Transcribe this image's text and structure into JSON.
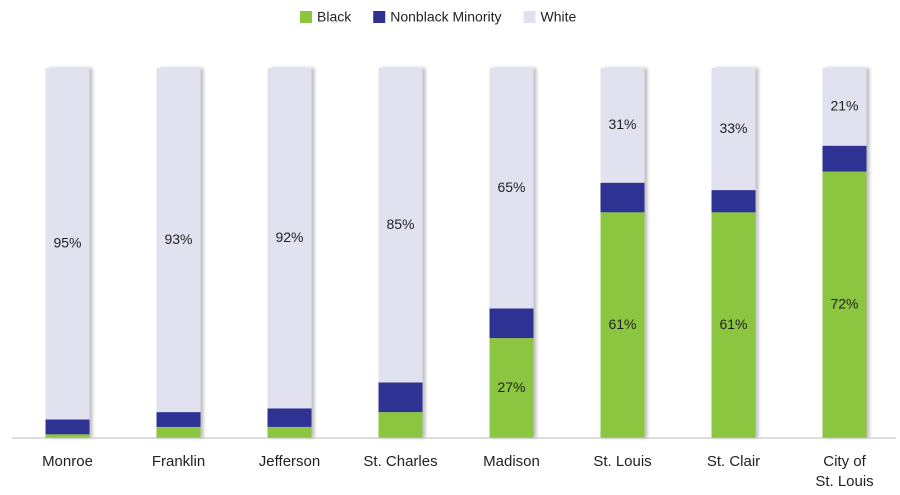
{
  "chart_data": {
    "type": "stacked_bar",
    "categories": [
      "Monroe",
      "Franklin",
      "Jefferson",
      "St. Charles",
      "Madison",
      "St. Louis",
      "St. Clair",
      "City of\nSt. Louis"
    ],
    "series": [
      {
        "name": "Black",
        "color": "#8cc63f",
        "values": [
          1,
          3,
          3,
          7,
          27,
          61,
          61,
          72
        ],
        "value_labels": [
          null,
          null,
          null,
          null,
          "27%",
          "61%",
          "61%",
          "72%"
        ]
      },
      {
        "name": "Nonblack Minority",
        "color": "#2e3192",
        "values": [
          4,
          4,
          5,
          8,
          8,
          8,
          6,
          7
        ]
      },
      {
        "name": "White",
        "color": "#e1e1ef",
        "values": [
          95,
          93,
          92,
          85,
          65,
          31,
          33,
          21
        ],
        "value_labels": [
          "95%",
          "93%",
          "92%",
          "85%",
          "65%",
          "31%",
          "33%",
          "21%"
        ]
      }
    ],
    "ylim": [
      0,
      100
    ],
    "legend": "top"
  }
}
